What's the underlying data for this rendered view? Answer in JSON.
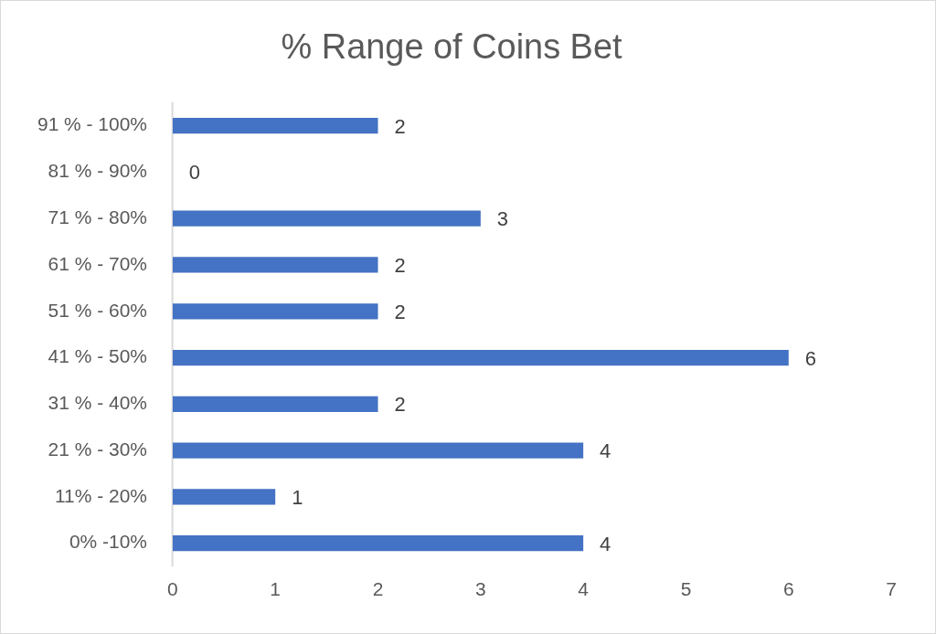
{
  "chart_data": {
    "type": "bar",
    "orientation": "horizontal",
    "title": "% Range of Coins Bet",
    "categories": [
      "91 % - 100%",
      "81 % - 90%",
      "71 % - 80%",
      "61 % - 70%",
      "51 % - 60%",
      "41 % - 50%",
      "31 % - 40%",
      "21 % - 30%",
      "11% - 20%",
      "0% -10%"
    ],
    "values": [
      2,
      0,
      3,
      2,
      2,
      6,
      2,
      4,
      1,
      4
    ],
    "color": "#4472c4",
    "xlim": [
      0,
      7
    ],
    "xticks": [
      0,
      1,
      2,
      3,
      4,
      5,
      6,
      7
    ],
    "grid": false,
    "legend": false,
    "data_labels": true
  }
}
